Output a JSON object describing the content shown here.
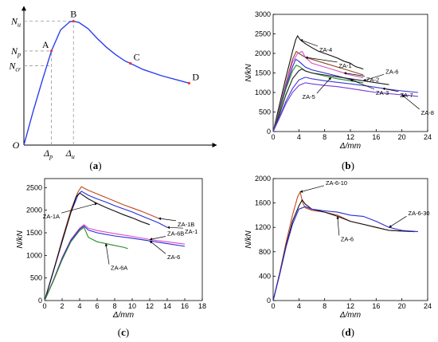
{
  "chart_data": [
    {
      "id": "a",
      "panel_label": "a",
      "type": "line",
      "title": "",
      "origin_label": "O",
      "y_symbols": [
        {
          "name": "N",
          "sub": "u",
          "y": 1.0
        },
        {
          "name": "N",
          "sub": "p",
          "y": 0.76
        },
        {
          "name": "N",
          "sub": "cr",
          "y": 0.64
        }
      ],
      "x_symbols": [
        {
          "name": "Δ",
          "sub": "p",
          "x": 0.15
        },
        {
          "name": "Δ",
          "sub": "u",
          "x": 0.27
        }
      ],
      "points": [
        {
          "label": "A",
          "x": 0.15,
          "y": 0.76
        },
        {
          "label": "B",
          "x": 0.27,
          "y": 1.0
        },
        {
          "label": "C",
          "x": 0.58,
          "y": 0.66
        },
        {
          "label": "D",
          "x": 0.9,
          "y": 0.5
        }
      ],
      "series": [
        {
          "color": "#2b3ff0",
          "x": [
            0,
            0.05,
            0.1,
            0.15,
            0.2,
            0.25,
            0.27,
            0.3,
            0.35,
            0.4,
            0.45,
            0.5,
            0.55,
            0.58,
            0.65,
            0.75,
            0.85,
            0.9
          ],
          "y": [
            0,
            0.27,
            0.52,
            0.76,
            0.93,
            0.995,
            1.0,
            0.99,
            0.94,
            0.86,
            0.79,
            0.73,
            0.68,
            0.66,
            0.61,
            0.56,
            0.52,
            0.5
          ]
        }
      ],
      "xlim": [
        0,
        1.05
      ],
      "ylim": [
        0,
        1.12
      ]
    },
    {
      "id": "b",
      "panel_label": "b",
      "type": "line",
      "xlabel": "Δ/mm",
      "ylabel": "N/kN",
      "xticks": [
        0,
        4,
        8,
        12,
        16,
        20,
        24
      ],
      "yticks": [
        0,
        500,
        1000,
        1500,
        2000,
        2500,
        3000
      ],
      "xlim": [
        0,
        24
      ],
      "ylim": [
        0,
        3000
      ],
      "series": [
        {
          "name": "ZA-4",
          "color": "#111111",
          "x": [
            0,
            1,
            2,
            3,
            3.5,
            3.8,
            4.2,
            5,
            6,
            7,
            8,
            9,
            10,
            11,
            12,
            12.5,
            13,
            13.5,
            14
          ],
          "y": [
            0,
            700,
            1400,
            2050,
            2350,
            2450,
            2350,
            2250,
            2150,
            2060,
            2000,
            1940,
            1880,
            1800,
            1750,
            1690,
            1650,
            1630,
            1600
          ]
        },
        {
          "name": "ZA-1",
          "color": "#8a4a1c",
          "x": [
            0,
            1,
            2,
            3,
            3.6,
            4,
            5,
            6,
            8,
            10,
            12,
            14
          ],
          "y": [
            0,
            600,
            1250,
            1850,
            2050,
            2000,
            1900,
            1850,
            1750,
            1650,
            1550,
            1450
          ]
        },
        {
          "name": "ZA-2",
          "color": "#d84cc6",
          "x": [
            0,
            1,
            2,
            3,
            3.8,
            4.5,
            5,
            6,
            8,
            10,
            12,
            14
          ],
          "y": [
            0,
            580,
            1200,
            1780,
            2000,
            2050,
            1900,
            1750,
            1650,
            1550,
            1450,
            1380
          ]
        },
        {
          "name": "ZA-3",
          "color": "#2a2ad8",
          "x": [
            0,
            1,
            2,
            3,
            3.5,
            4,
            5,
            6,
            8,
            10,
            12,
            13.5
          ],
          "y": [
            0,
            550,
            1150,
            1650,
            1850,
            1800,
            1650,
            1580,
            1500,
            1420,
            1330,
            1250
          ]
        },
        {
          "name": "ZA-5",
          "color": "#2a8a2a",
          "x": [
            0,
            1,
            2,
            3,
            3.6,
            4.2,
            5,
            6,
            8,
            10,
            12,
            14
          ],
          "y": [
            0,
            520,
            1100,
            1550,
            1700,
            1650,
            1550,
            1500,
            1420,
            1350,
            1300,
            1250
          ]
        },
        {
          "name": "ZA-6",
          "color": "#222222",
          "x": [
            0,
            1,
            2,
            3,
            4,
            4.5,
            5,
            6,
            8,
            10,
            12,
            14,
            16,
            18
          ],
          "y": [
            0,
            450,
            950,
            1350,
            1560,
            1600,
            1550,
            1500,
            1450,
            1400,
            1350,
            1300,
            1250,
            1200
          ]
        },
        {
          "name": "ZA-7",
          "color": "#3b3bd8",
          "x": [
            0,
            1,
            2,
            3,
            4,
            5,
            6,
            8,
            10,
            12,
            14,
            16,
            18,
            20,
            22.5
          ],
          "y": [
            0,
            380,
            780,
            1100,
            1320,
            1390,
            1350,
            1300,
            1260,
            1220,
            1180,
            1130,
            1080,
            1040,
            1000
          ]
        },
        {
          "name": "ZA-8",
          "color": "#7a3ad8",
          "x": [
            0,
            1,
            2,
            3,
            4,
            5,
            6,
            8,
            10,
            12,
            14,
            16,
            18,
            20,
            22.5
          ],
          "y": [
            0,
            350,
            720,
            1000,
            1180,
            1250,
            1220,
            1180,
            1150,
            1100,
            1050,
            1000,
            970,
            940,
            900
          ]
        }
      ],
      "annotations": [
        {
          "text": "ZA-4",
          "series": "ZA-4",
          "at_x": 4.2
        },
        {
          "text": "ZA-1",
          "series": "ZA-1",
          "at_x": 5
        },
        {
          "text": "ZA-2",
          "series": "ZA-2",
          "at_x": 11
        },
        {
          "text": "ZA-3",
          "series": "ZA-3",
          "at_x": 12
        },
        {
          "text": "ZA-5",
          "series": "ZA-5",
          "at_x": 9
        },
        {
          "text": "ZA-6",
          "series": "ZA-6",
          "at_x": 14
        },
        {
          "text": "ZA-7",
          "series": "ZA-7",
          "at_x": 17
        },
        {
          "text": "ZA-8",
          "series": "ZA-8",
          "at_x": 20
        }
      ]
    },
    {
      "id": "c",
      "panel_label": "c",
      "type": "line",
      "xlabel": "Δ/mm",
      "ylabel": "N/kN",
      "xticks": [
        0,
        2,
        4,
        6,
        8,
        10,
        12,
        14,
        16,
        18
      ],
      "yticks": [
        0,
        500,
        1000,
        1500,
        2000,
        2500
      ],
      "xlim": [
        0,
        18
      ],
      "ylim": [
        0,
        2700
      ],
      "series": [
        {
          "name": "ZA-1B",
          "color": "#c04a1c",
          "x": [
            0,
            1,
            2,
            3,
            3.8,
            4.2,
            5,
            6,
            7,
            8,
            9,
            10,
            11,
            12,
            13
          ],
          "y": [
            0,
            650,
            1350,
            2000,
            2400,
            2520,
            2440,
            2360,
            2280,
            2200,
            2120,
            2050,
            1980,
            1900,
            1820
          ]
        },
        {
          "name": "ZA-1",
          "color": "#2a2ad8",
          "x": [
            0,
            1,
            2,
            3,
            3.8,
            4.2,
            5,
            6,
            7,
            8,
            9,
            10,
            11,
            12,
            13,
            14
          ],
          "y": [
            0,
            640,
            1320,
            1950,
            2330,
            2420,
            2330,
            2250,
            2180,
            2100,
            2030,
            1960,
            1880,
            1800,
            1720,
            1620
          ]
        },
        {
          "name": "ZA-1A",
          "color": "#111111",
          "x": [
            0,
            1,
            2,
            3,
            3.6,
            4,
            5,
            6,
            7,
            8,
            9,
            10,
            11,
            12
          ],
          "y": [
            0,
            650,
            1300,
            1950,
            2300,
            2380,
            2250,
            2150,
            2060,
            1980,
            1900,
            1830,
            1750,
            1680
          ]
        },
        {
          "name": "ZA-6B",
          "color": "#d84cc6",
          "x": [
            0,
            1,
            2,
            3,
            4,
            4.5,
            5,
            6,
            8,
            10,
            12,
            14,
            16
          ],
          "y": [
            0,
            450,
            950,
            1350,
            1600,
            1680,
            1600,
            1550,
            1480,
            1420,
            1350,
            1300,
            1250
          ]
        },
        {
          "name": "ZA-6",
          "color": "#2a2ad8",
          "x": [
            0,
            1,
            2,
            3,
            4,
            4.5,
            5,
            6,
            8,
            10,
            12,
            14,
            16
          ],
          "y": [
            0,
            440,
            930,
            1330,
            1580,
            1650,
            1560,
            1500,
            1430,
            1380,
            1320,
            1260,
            1200
          ]
        },
        {
          "name": "ZA-6A",
          "color": "#2a8a2a",
          "x": [
            0,
            1,
            2,
            3,
            4,
            4.5,
            5,
            6,
            7,
            8,
            9,
            9.5
          ],
          "y": [
            0,
            430,
            900,
            1300,
            1550,
            1620,
            1400,
            1300,
            1260,
            1220,
            1180,
            1150
          ]
        }
      ],
      "annotations": [
        {
          "text": "ZA-1B",
          "series": "ZA-1B",
          "at_x": 13
        },
        {
          "text": "ZA-1",
          "series": "ZA-1",
          "at_x": 14
        },
        {
          "text": "ZA-1A",
          "series": "ZA-1A",
          "at_x": 6
        },
        {
          "text": "ZA-6B",
          "series": "ZA-6B",
          "at_x": 12
        },
        {
          "text": "ZA-6",
          "series": "ZA-6",
          "at_x": 12
        },
        {
          "text": "ZA-6A",
          "series": "ZA-6A",
          "at_x": 7
        }
      ]
    },
    {
      "id": "d",
      "panel_label": "d",
      "type": "line",
      "xlabel": "Δ/mm",
      "ylabel": "N/kN",
      "xticks": [
        0,
        4,
        8,
        12,
        16,
        20,
        24
      ],
      "yticks": [
        0,
        400,
        800,
        1200,
        1600,
        2000
      ],
      "xlim": [
        0,
        24
      ],
      "ylim": [
        0,
        2000
      ],
      "series": [
        {
          "name": "ZA-6-10",
          "color": "#c04a1c",
          "x": [
            0,
            1,
            2,
            3,
            3.8,
            4.2,
            4.6,
            5,
            6,
            8,
            10,
            12,
            14,
            16,
            18,
            20,
            22
          ],
          "y": [
            0,
            450,
            950,
            1400,
            1700,
            1780,
            1600,
            1520,
            1480,
            1450,
            1400,
            1300,
            1250,
            1200,
            1150,
            1140,
            1130
          ]
        },
        {
          "name": "ZA-6",
          "color": "#111111",
          "x": [
            0,
            1,
            2,
            3,
            4,
            4.5,
            5,
            6,
            8,
            10,
            12,
            14,
            16,
            18,
            20,
            22
          ],
          "y": [
            0,
            430,
            900,
            1300,
            1550,
            1650,
            1580,
            1500,
            1450,
            1380,
            1300,
            1250,
            1200,
            1150,
            1140,
            1130
          ]
        },
        {
          "name": "ZA-6-30",
          "color": "#2a2ad8",
          "x": [
            0,
            1,
            2,
            3,
            4,
            5,
            6,
            8,
            10,
            12,
            14,
            16,
            18,
            20,
            22.5
          ],
          "y": [
            0,
            420,
            880,
            1250,
            1500,
            1540,
            1500,
            1470,
            1450,
            1400,
            1380,
            1300,
            1200,
            1150,
            1130
          ]
        }
      ],
      "annotations": [
        {
          "text": "ZA-6-10",
          "series": "ZA-6-10",
          "at_x": 4.2
        },
        {
          "text": "ZA-6",
          "series": "ZA-6",
          "at_x": 10
        },
        {
          "text": "ZA-6-30",
          "series": "ZA-6-30",
          "at_x": 18
        }
      ]
    }
  ]
}
